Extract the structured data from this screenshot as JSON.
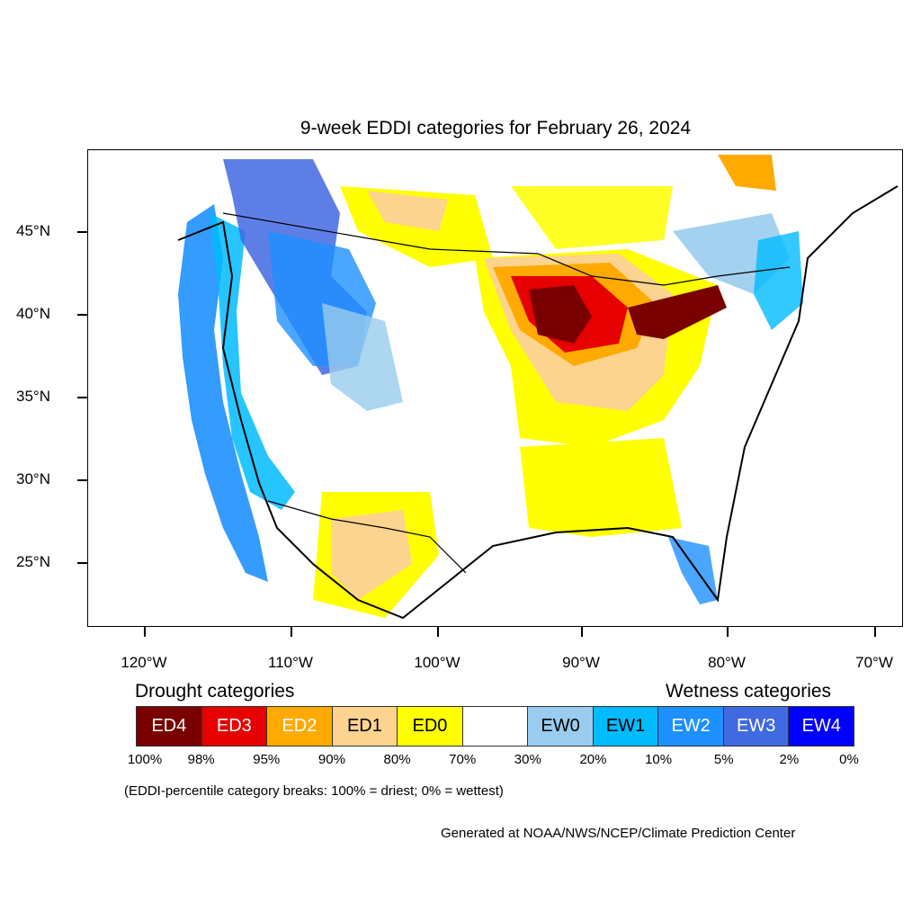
{
  "title": "9-week EDDI categories for February 26, 2024",
  "lat_labels": [
    "45°N",
    "40°N",
    "35°N",
    "30°N",
    "25°N"
  ],
  "lon_labels": [
    "120°W",
    "110°W",
    "100°W",
    "90°W",
    "80°W",
    "70°W"
  ],
  "legend": {
    "drought_title": "Drought categories",
    "wetness_title": "Wetness categories",
    "categories": [
      {
        "label": "ED4",
        "color": "#7a0000",
        "text_color": "#ffffff"
      },
      {
        "label": "ED3",
        "color": "#e60000",
        "text_color": "#ffffff"
      },
      {
        "label": "ED2",
        "color": "#ffaa00",
        "text_color": "#ffffff"
      },
      {
        "label": "ED1",
        "color": "#fcd38f",
        "text_color": "#000000"
      },
      {
        "label": "ED0",
        "color": "#ffff00",
        "text_color": "#000000"
      },
      {
        "label": "",
        "color": "#ffffff",
        "text_color": "#000000"
      },
      {
        "label": "EW0",
        "color": "#99ccee",
        "text_color": "#000000"
      },
      {
        "label": "EW1",
        "color": "#00bbff",
        "text_color": "#000000"
      },
      {
        "label": "EW2",
        "color": "#1e90ff",
        "text_color": "#ffffff"
      },
      {
        "label": "EW3",
        "color": "#4169e1",
        "text_color": "#ffffff"
      },
      {
        "label": "EW4",
        "color": "#0000ff",
        "text_color": "#ffffff"
      }
    ],
    "percent_breaks": [
      "100%",
      "98%",
      "95%",
      "90%",
      "80%",
      "70%",
      "30%",
      "20%",
      "10%",
      "5%",
      "2%",
      "0%"
    ]
  },
  "note": "(EDDI-percentile category break​s: 100% = driest; 0% = wettest)",
  "credit": "Generated at NOAA/NWS/NCEP/Climate Prediction Center"
}
